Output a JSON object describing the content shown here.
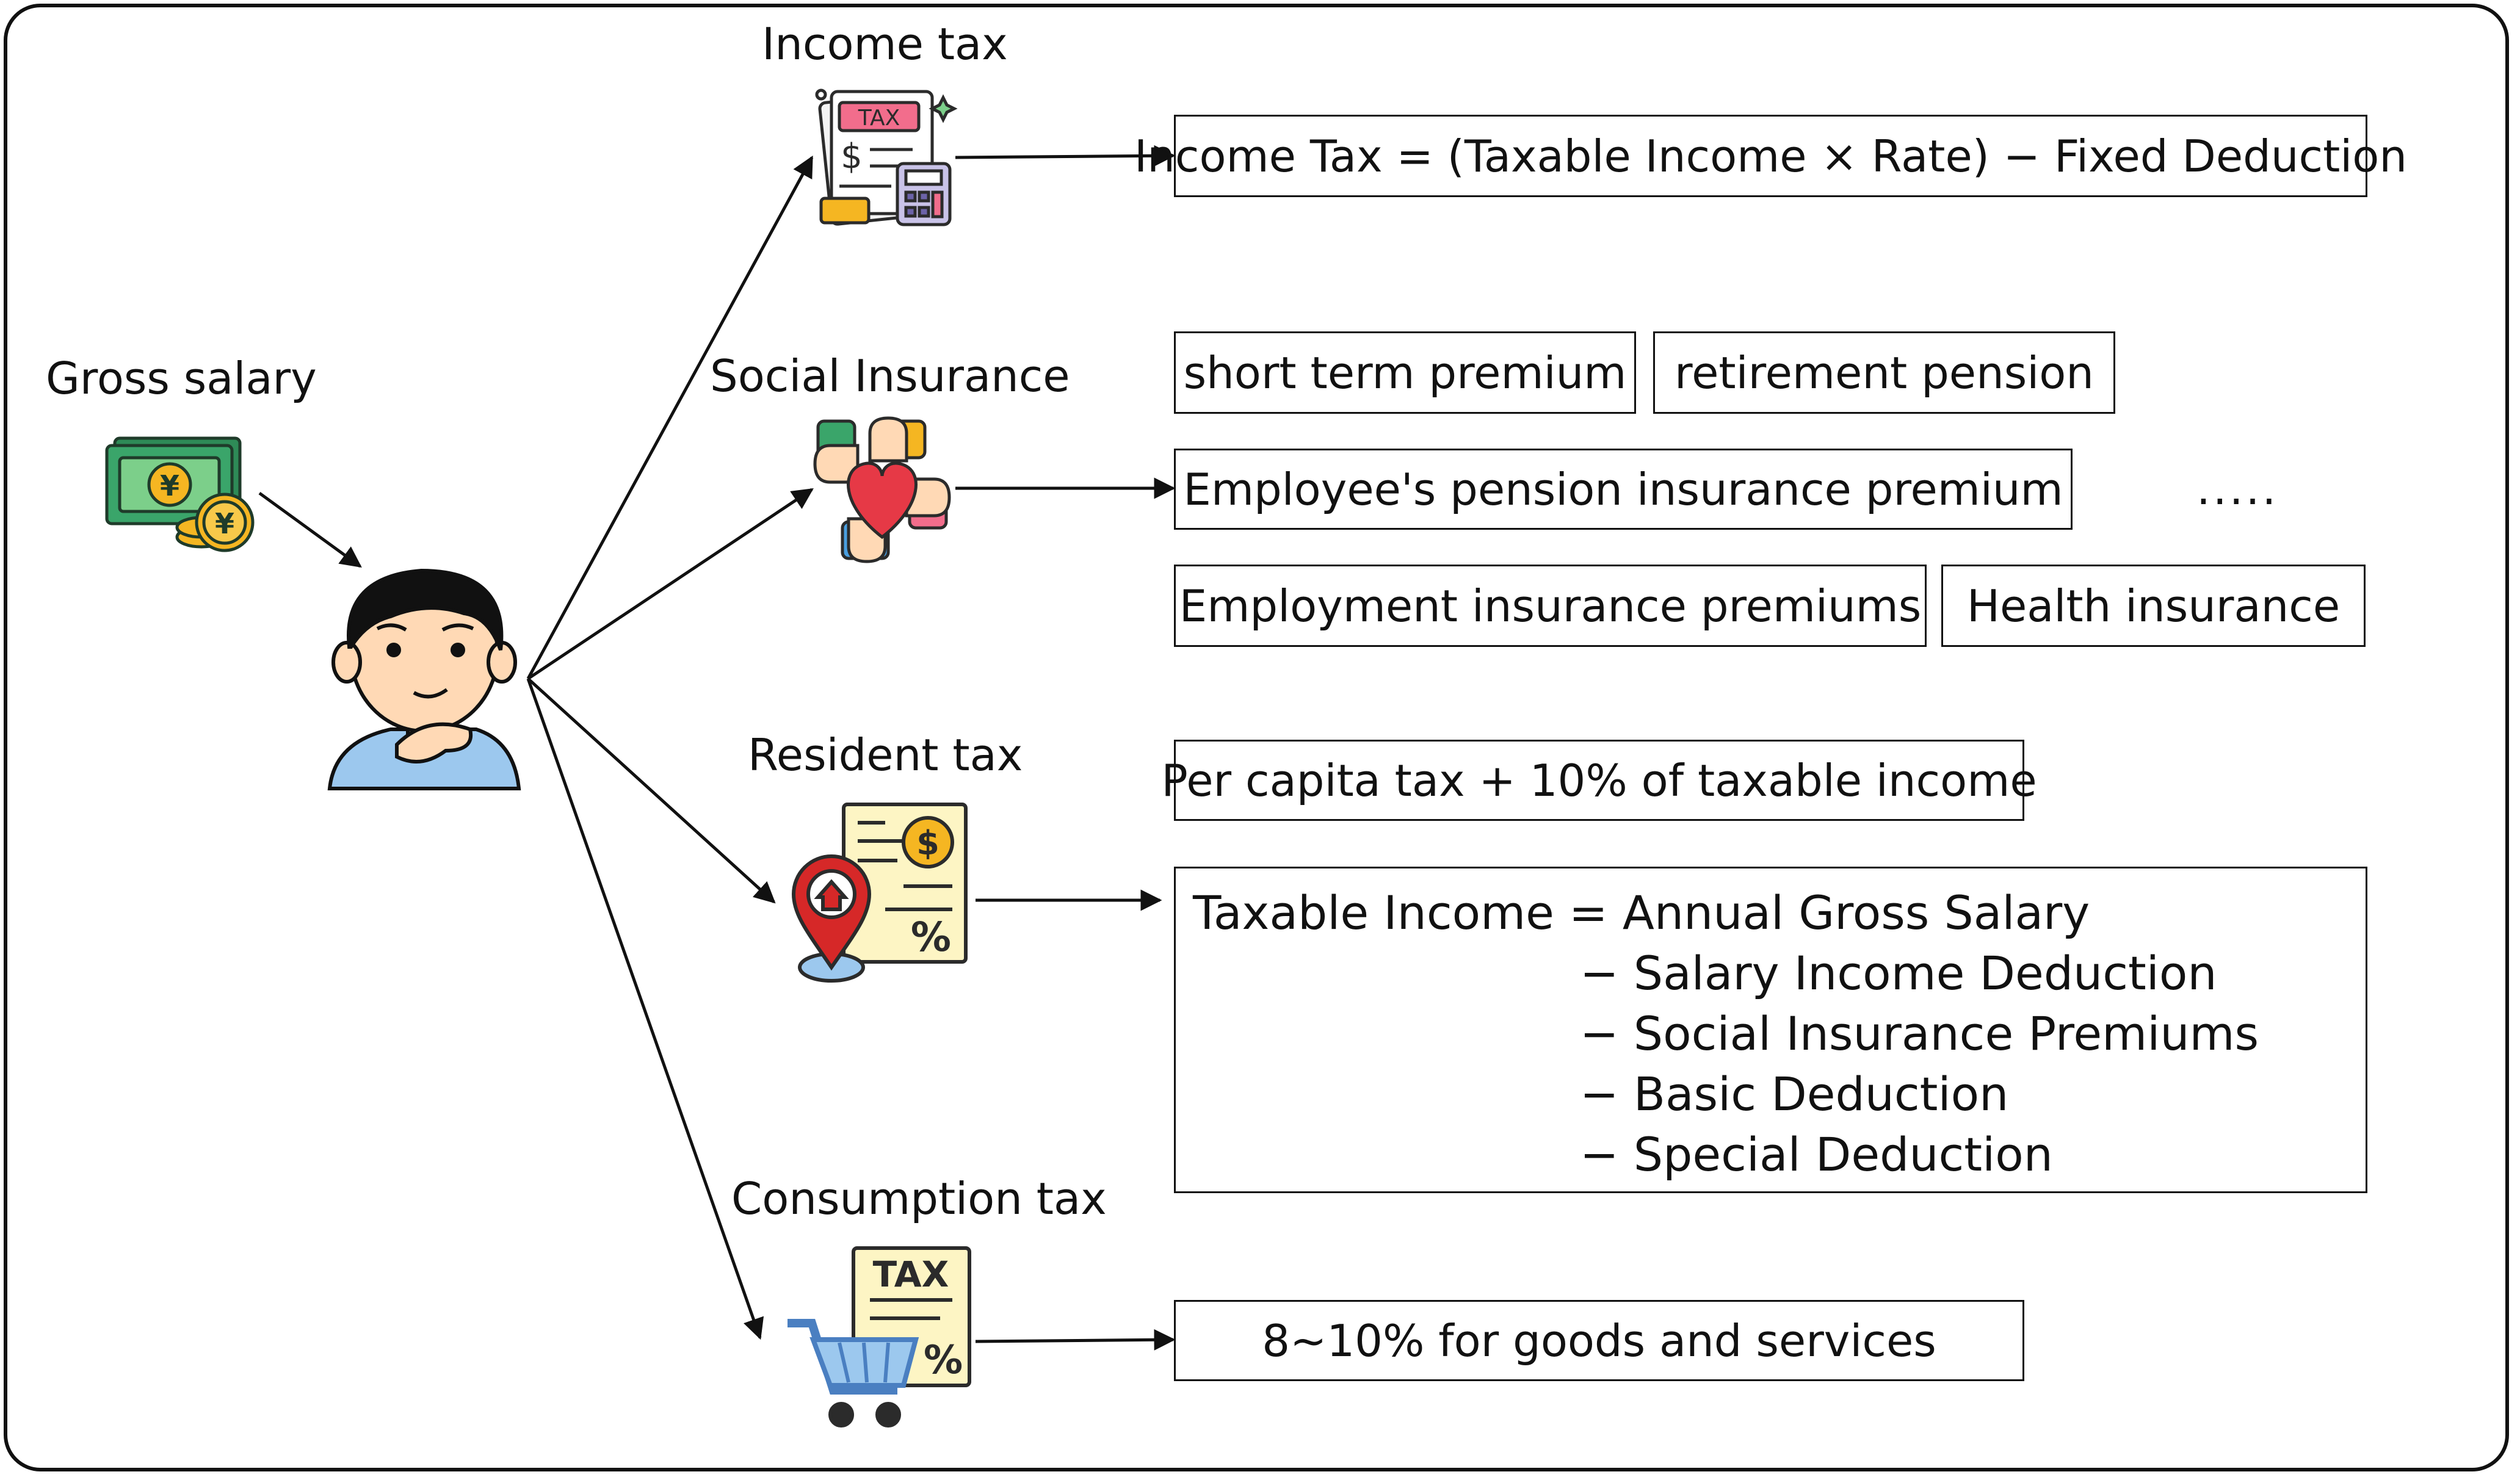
{
  "source": {
    "label": "Gross salary",
    "icon": "money-yen-icon",
    "person_icon": "thinking-person-icon"
  },
  "categories": [
    {
      "id": "income-tax",
      "label": "Income tax",
      "icon": "tax-calculator-icon",
      "boxes": [
        "Income Tax = (Taxable Income × Rate) − Fixed Deduction"
      ]
    },
    {
      "id": "social-insurance",
      "label": "Social Insurance",
      "icon": "hands-heart-icon",
      "boxes": [
        "short term premium",
        "retirement pension",
        "Employee's pension insurance premium",
        "Employment insurance premiums",
        "Health insurance"
      ],
      "more": "....."
    },
    {
      "id": "resident-tax",
      "label": "Resident tax",
      "icon": "location-document-icon",
      "boxes": [
        "Per capita tax + 10% of taxable income"
      ],
      "formula": {
        "first": "Taxable Income = Annual Gross Salary",
        "terms": [
          "− Salary Income Deduction",
          "− Social Insurance Premiums",
          "− Basic Deduction",
          "− Special Deduction"
        ]
      }
    },
    {
      "id": "consumption-tax",
      "label": "Consumption tax",
      "icon": "shopping-cart-tax-icon",
      "boxes": [
        "8~10% for goods and services"
      ]
    }
  ],
  "icon_text": {
    "income_tax_sheet": "TAX",
    "income_tax_dollar": "$",
    "resident_dollar": "$",
    "resident_percent": "%",
    "consumption_sheet": "TAX",
    "consumption_percent": "%",
    "yen": "¥"
  },
  "colors": {
    "money_green": "#2e8b57",
    "money_light": "#7ccf8a",
    "coin_gold": "#f5b622",
    "heart_red": "#e63946",
    "pin_red": "#d62828",
    "paper_yellow": "#fdf5c4",
    "cart_blue": "#4a7fc1",
    "shirt_blue": "#9cc8ee",
    "tax_pink": "#f26d8c"
  }
}
